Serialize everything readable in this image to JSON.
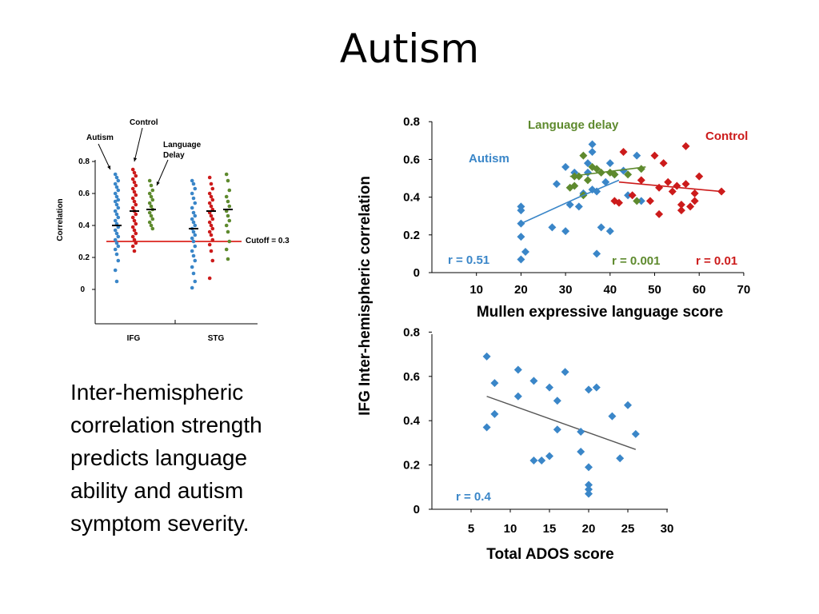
{
  "slide": {
    "title": "Autism",
    "caption_lines": [
      "Inter-hemispheric",
      "correlation strength",
      "predicts language",
      "ability and autism",
      "symptom severity."
    ]
  },
  "colors": {
    "autism": "#3a86c8",
    "language_delay": "#5e8a2e",
    "control": "#cc1b1b",
    "cutoff": "#e0403a",
    "fit": "#555555"
  },
  "chart_data": [
    {
      "type": "scatter",
      "title": "",
      "ylabel": "Correlation",
      "xlabel": "",
      "categories": [
        "IFG",
        "STG"
      ],
      "ylim": [
        0,
        0.8
      ],
      "yticks": [
        "0.8",
        "0.6",
        "0.4",
        "0.2",
        "0"
      ],
      "group_labels": [
        "Autism",
        "Control",
        "Language Delay"
      ],
      "language_delay_label_lines": [
        "Language",
        "Delay"
      ],
      "cutoff": {
        "value": 0.3,
        "label": "Cutoff = 0.3"
      },
      "series": [
        {
          "key": "autism",
          "region": "IFG",
          "mean": 0.4,
          "values": [
            0.72,
            0.7,
            0.68,
            0.66,
            0.64,
            0.62,
            0.6,
            0.58,
            0.56,
            0.55,
            0.53,
            0.51,
            0.49,
            0.47,
            0.45,
            0.43,
            0.41,
            0.39,
            0.37,
            0.35,
            0.33,
            0.31,
            0.29,
            0.27,
            0.25,
            0.22,
            0.18,
            0.12,
            0.05
          ]
        },
        {
          "key": "control",
          "region": "IFG",
          "mean": 0.49,
          "values": [
            0.75,
            0.73,
            0.71,
            0.69,
            0.67,
            0.65,
            0.63,
            0.61,
            0.59,
            0.57,
            0.55,
            0.53,
            0.51,
            0.49,
            0.47,
            0.45,
            0.43,
            0.41,
            0.39,
            0.37,
            0.35,
            0.33,
            0.31,
            0.29,
            0.27,
            0.24
          ]
        },
        {
          "key": "language_delay",
          "region": "IFG",
          "mean": 0.5,
          "values": [
            0.68,
            0.65,
            0.62,
            0.6,
            0.58,
            0.56,
            0.54,
            0.52,
            0.5,
            0.48,
            0.46,
            0.44,
            0.42,
            0.4,
            0.38
          ]
        },
        {
          "key": "autism",
          "region": "STG",
          "mean": 0.38,
          "values": [
            0.68,
            0.66,
            0.63,
            0.6,
            0.57,
            0.54,
            0.51,
            0.48,
            0.46,
            0.44,
            0.42,
            0.4,
            0.38,
            0.36,
            0.34,
            0.32,
            0.3,
            0.27,
            0.24,
            0.21,
            0.18,
            0.14,
            0.1,
            0.05,
            0.01
          ]
        },
        {
          "key": "control",
          "region": "STG",
          "mean": 0.49,
          "values": [
            0.7,
            0.66,
            0.63,
            0.6,
            0.58,
            0.56,
            0.54,
            0.52,
            0.5,
            0.48,
            0.46,
            0.44,
            0.42,
            0.4,
            0.38,
            0.36,
            0.34,
            0.31,
            0.28,
            0.24,
            0.18,
            0.07
          ]
        },
        {
          "key": "language_delay",
          "region": "STG",
          "mean": 0.5,
          "values": [
            0.72,
            0.68,
            0.62,
            0.58,
            0.55,
            0.52,
            0.49,
            0.46,
            0.43,
            0.4,
            0.36,
            0.3,
            0.25,
            0.19
          ]
        }
      ]
    },
    {
      "type": "scatter",
      "title": "",
      "xlabel": "Mullen expressive language score",
      "ylabel": "IFG Inter-hemispheric correlation",
      "xlim": [
        0,
        70
      ],
      "ylim": [
        0,
        0.8
      ],
      "xticks": [
        "10",
        "20",
        "30",
        "40",
        "50",
        "60",
        "70"
      ],
      "yticks": [
        "0.8",
        "0.6",
        "0.4",
        "0.2",
        "0"
      ],
      "series": [
        {
          "key": "autism",
          "name": "Autism",
          "r_label": "r = 0.51",
          "fit": [
            [
              20,
              0.26
            ],
            [
              33,
              0.4
            ],
            [
              42,
              0.49
            ]
          ],
          "points": [
            [
              20,
              0.35
            ],
            [
              20,
              0.33
            ],
            [
              20,
              0.26
            ],
            [
              20,
              0.19
            ],
            [
              20,
              0.07
            ],
            [
              21,
              0.11
            ],
            [
              27,
              0.24
            ],
            [
              28,
              0.47
            ],
            [
              30,
              0.22
            ],
            [
              30,
              0.56
            ],
            [
              31,
              0.36
            ],
            [
              32,
              0.53
            ],
            [
              33,
              0.35
            ],
            [
              34,
              0.42
            ],
            [
              35,
              0.53
            ],
            [
              35,
              0.58
            ],
            [
              36,
              0.68
            ],
            [
              36,
              0.64
            ],
            [
              36,
              0.44
            ],
            [
              37,
              0.43
            ],
            [
              37,
              0.1
            ],
            [
              38,
              0.24
            ],
            [
              39,
              0.48
            ],
            [
              40,
              0.58
            ],
            [
              40,
              0.22
            ],
            [
              41,
              0.52
            ],
            [
              43,
              0.54
            ],
            [
              44,
              0.41
            ],
            [
              46,
              0.62
            ],
            [
              47,
              0.38
            ]
          ]
        },
        {
          "key": "language_delay",
          "name": "Language delay",
          "r_label": "r = 0.001",
          "fit": [
            [
              31,
              0.51
            ],
            [
              48,
              0.56
            ]
          ],
          "points": [
            [
              31,
              0.45
            ],
            [
              32,
              0.46
            ],
            [
              32,
              0.51
            ],
            [
              33,
              0.51
            ],
            [
              34,
              0.62
            ],
            [
              34,
              0.41
            ],
            [
              35,
              0.49
            ],
            [
              36,
              0.56
            ],
            [
              37,
              0.55
            ],
            [
              38,
              0.53
            ],
            [
              40,
              0.53
            ],
            [
              41,
              0.52
            ],
            [
              44,
              0.52
            ],
            [
              46,
              0.38
            ],
            [
              47,
              0.55
            ]
          ]
        },
        {
          "key": "control",
          "name": "Control",
          "r_label": "r = 0.01",
          "fit": [
            [
              42,
              0.48
            ],
            [
              65,
              0.43
            ]
          ],
          "points": [
            [
              41,
              0.38
            ],
            [
              42,
              0.37
            ],
            [
              43,
              0.64
            ],
            [
              45,
              0.41
            ],
            [
              47,
              0.49
            ],
            [
              49,
              0.38
            ],
            [
              50,
              0.62
            ],
            [
              51,
              0.45
            ],
            [
              51,
              0.31
            ],
            [
              52,
              0.58
            ],
            [
              53,
              0.48
            ],
            [
              54,
              0.43
            ],
            [
              55,
              0.46
            ],
            [
              56,
              0.36
            ],
            [
              56,
              0.33
            ],
            [
              57,
              0.47
            ],
            [
              57,
              0.67
            ],
            [
              58,
              0.35
            ],
            [
              59,
              0.42
            ],
            [
              59,
              0.38
            ],
            [
              60,
              0.51
            ],
            [
              65,
              0.43
            ]
          ]
        }
      ]
    },
    {
      "type": "scatter",
      "title": "",
      "xlabel": "Total ADOS score",
      "ylabel": "IFG Inter-hemispheric correlation",
      "xlim": [
        0,
        30
      ],
      "ylim": [
        0,
        0.8
      ],
      "xticks": [
        "5",
        "10",
        "15",
        "20",
        "25",
        "30"
      ],
      "yticks": [
        "0.8",
        "0.6",
        "0.4",
        "0.2",
        "0"
      ],
      "r_label": "r = 0.4",
      "fit": [
        [
          7,
          0.51
        ],
        [
          26,
          0.27
        ]
      ],
      "points": [
        [
          7,
          0.69
        ],
        [
          7,
          0.37
        ],
        [
          8,
          0.57
        ],
        [
          8,
          0.43
        ],
        [
          11,
          0.63
        ],
        [
          11,
          0.51
        ],
        [
          13,
          0.58
        ],
        [
          13,
          0.22
        ],
        [
          14,
          0.22
        ],
        [
          15,
          0.24
        ],
        [
          15,
          0.55
        ],
        [
          16,
          0.49
        ],
        [
          16,
          0.36
        ],
        [
          17,
          0.62
        ],
        [
          19,
          0.35
        ],
        [
          19,
          0.26
        ],
        [
          20,
          0.54
        ],
        [
          20,
          0.19
        ],
        [
          20,
          0.11
        ],
        [
          20,
          0.09
        ],
        [
          20,
          0.07
        ],
        [
          21,
          0.55
        ],
        [
          23,
          0.42
        ],
        [
          24,
          0.23
        ],
        [
          25,
          0.47
        ],
        [
          26,
          0.34
        ]
      ]
    }
  ]
}
